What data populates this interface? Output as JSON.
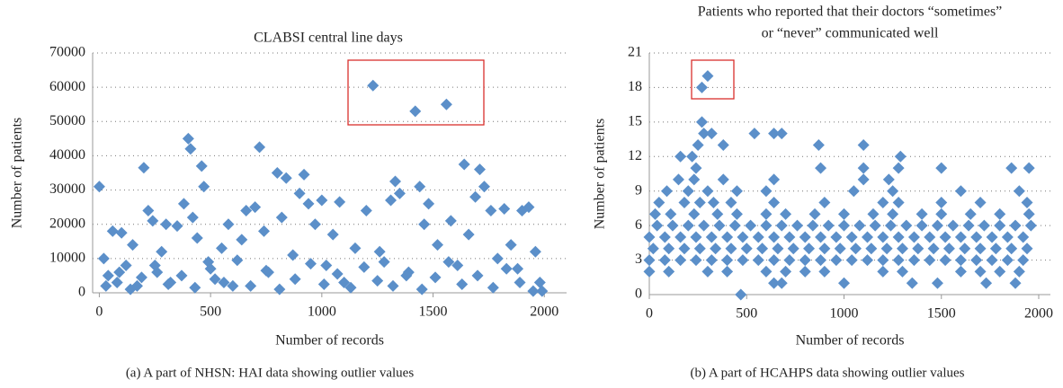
{
  "chart_data": [
    {
      "type": "scatter",
      "title": [
        "CLABSI central line days"
      ],
      "x_label": "Number of records",
      "y_label": "Number of patients",
      "caption": "(a)  A part of NHSN: HAI data showing outlier values",
      "color": "#5b8fc9",
      "grid": true,
      "xlim": [
        -30,
        2100
      ],
      "ylim": [
        0,
        70000
      ],
      "xticks": [
        0,
        500,
        1000,
        1500,
        2000
      ],
      "yticks": [
        0,
        10000,
        20000,
        30000,
        40000,
        50000,
        60000,
        70000
      ],
      "x": [
        0,
        20,
        40,
        60,
        80,
        100,
        120,
        150,
        170,
        200,
        220,
        240,
        260,
        280,
        300,
        320,
        350,
        380,
        400,
        410,
        420,
        440,
        460,
        470,
        490,
        520,
        550,
        580,
        600,
        640,
        660,
        700,
        720,
        740,
        760,
        800,
        820,
        840,
        870,
        900,
        920,
        940,
        970,
        1000,
        1020,
        1050,
        1080,
        1100,
        1150,
        1200,
        1230,
        1260,
        1280,
        1310,
        1330,
        1350,
        1380,
        1420,
        1440,
        1460,
        1480,
        1520,
        1560,
        1580,
        1610,
        1640,
        1660,
        1690,
        1710,
        1730,
        1760,
        1790,
        1820,
        1850,
        1880,
        1900,
        1930,
        1960,
        1980,
        1990,
        30,
        90,
        140,
        190,
        250,
        310,
        370,
        430,
        500,
        560,
        620,
        680,
        750,
        810,
        880,
        950,
        1010,
        1070,
        1130,
        1190,
        1250,
        1320,
        1390,
        1450,
        1510,
        1570,
        1630,
        1700,
        1770,
        1830,
        1890,
        1950
      ],
      "values": [
        31000,
        10000,
        5000,
        18000,
        3000,
        17500,
        8000,
        14000,
        2000,
        36500,
        24000,
        21000,
        6000,
        12000,
        20000,
        3000,
        19500,
        26000,
        45000,
        42000,
        22000,
        16000,
        37000,
        31000,
        9000,
        4000,
        13000,
        20000,
        2000,
        15500,
        24000,
        25000,
        42500,
        18000,
        6000,
        35000,
        22000,
        33500,
        11000,
        29000,
        34500,
        26000,
        20000,
        27000,
        8000,
        17000,
        26500,
        3000,
        13000,
        24000,
        60500,
        12000,
        9000,
        27000,
        32500,
        29000,
        5000,
        53000,
        31000,
        20000,
        26000,
        14000,
        55000,
        21000,
        8000,
        37500,
        17000,
        28000,
        36000,
        31000,
        24000,
        10000,
        24500,
        14000,
        7000,
        24000,
        25000,
        12000,
        3000,
        500,
        2000,
        6000,
        1000,
        4500,
        8000,
        2500,
        5000,
        1500,
        7000,
        3000,
        9500,
        2000,
        6500,
        1000,
        4000,
        8500,
        2500,
        5500,
        1500,
        7500,
        3500,
        2000,
        6000,
        1000,
        4500,
        9000,
        2500,
        5000,
        1500,
        7000,
        3000,
        500
      ]
    },
    {
      "type": "scatter",
      "title": [
        "Patients who reported that their doctors “sometimes”",
        "or “never” communicated well"
      ],
      "x_label": "Number of records",
      "y_label": "Number of patients",
      "caption": "(b)  A part of HCAHPS data showing outlier values",
      "color": "#5b8fc9",
      "grid": true,
      "xlim": [
        0,
        2060
      ],
      "ylim": [
        0,
        21
      ],
      "xticks": [
        0,
        500,
        1000,
        1500,
        2000
      ],
      "yticks": [
        0,
        3,
        6,
        9,
        12,
        15,
        18,
        21
      ],
      "x": [
        0,
        80,
        160,
        240,
        320,
        400,
        480,
        560,
        640,
        720,
        800,
        880,
        960,
        1040,
        1120,
        1200,
        1280,
        1360,
        1440,
        1520,
        1600,
        1680,
        1760,
        1840,
        1920,
        20,
        100,
        180,
        260,
        340,
        420,
        500,
        580,
        660,
        740,
        820,
        900,
        980,
        1060,
        1140,
        1220,
        1300,
        1380,
        1460,
        1540,
        1620,
        1700,
        1780,
        1860,
        1940,
        0,
        80,
        160,
        240,
        320,
        400,
        480,
        560,
        640,
        720,
        800,
        880,
        960,
        1040,
        1120,
        1200,
        1280,
        1360,
        1440,
        1520,
        1600,
        1680,
        1760,
        1840,
        1920,
        40,
        120,
        200,
        280,
        360,
        440,
        520,
        600,
        680,
        760,
        840,
        920,
        1000,
        1080,
        1160,
        1240,
        1320,
        1400,
        1480,
        1560,
        1640,
        1720,
        1800,
        1880,
        1960,
        0,
        100,
        300,
        400,
        600,
        700,
        800,
        900,
        1200,
        1300,
        1600,
        1700,
        1800,
        1900,
        30,
        110,
        230,
        350,
        450,
        600,
        700,
        850,
        1000,
        1150,
        1250,
        1400,
        1500,
        1650,
        1800,
        1950,
        50,
        180,
        260,
        330,
        420,
        640,
        900,
        1200,
        1280,
        1500,
        1700,
        1940,
        90,
        200,
        300,
        450,
        600,
        1050,
        1250,
        1600,
        1900,
        150,
        230,
        380,
        640,
        1100,
        1230,
        240,
        880,
        1100,
        1280,
        1500,
        1860,
        1950,
        160,
        220,
        1290,
        250,
        380,
        870,
        1100,
        280,
        320,
        540,
        640,
        680,
        270,
        640,
        680,
        1000,
        1350,
        1480,
        1730,
        1880,
        470,
        270,
        300
      ],
      "values": [
        3,
        3,
        3,
        3,
        3,
        3,
        3,
        3,
        3,
        3,
        3,
        3,
        3,
        3,
        3,
        3,
        3,
        3,
        3,
        3,
        3,
        3,
        3,
        3,
        3,
        4,
        4,
        4,
        4,
        4,
        4,
        4,
        4,
        4,
        4,
        4,
        4,
        4,
        4,
        4,
        4,
        4,
        4,
        4,
        4,
        4,
        4,
        4,
        4,
        4,
        5,
        5,
        5,
        5,
        5,
        5,
        5,
        5,
        5,
        5,
        5,
        5,
        5,
        5,
        5,
        5,
        5,
        5,
        5,
        5,
        5,
        5,
        5,
        5,
        5,
        6,
        6,
        6,
        6,
        6,
        6,
        6,
        6,
        6,
        6,
        6,
        6,
        6,
        6,
        6,
        6,
        6,
        6,
        6,
        6,
        6,
        6,
        6,
        6,
        6,
        2,
        2,
        2,
        2,
        2,
        2,
        2,
        2,
        2,
        2,
        2,
        2,
        2,
        2,
        7,
        7,
        7,
        7,
        7,
        7,
        7,
        7,
        7,
        7,
        7,
        7,
        7,
        7,
        7,
        7,
        8,
        8,
        8,
        8,
        8,
        8,
        8,
        8,
        8,
        8,
        8,
        8,
        9,
        9,
        9,
        9,
        9,
        9,
        9,
        9,
        9,
        10,
        10,
        10,
        10,
        10,
        10,
        11,
        11,
        11,
        11,
        11,
        11,
        11,
        12,
        12,
        12,
        13,
        13,
        13,
        13,
        14,
        14,
        14,
        14,
        14,
        15,
        1,
        1,
        1,
        1,
        1,
        1,
        1,
        0,
        18,
        19
      ]
    }
  ]
}
